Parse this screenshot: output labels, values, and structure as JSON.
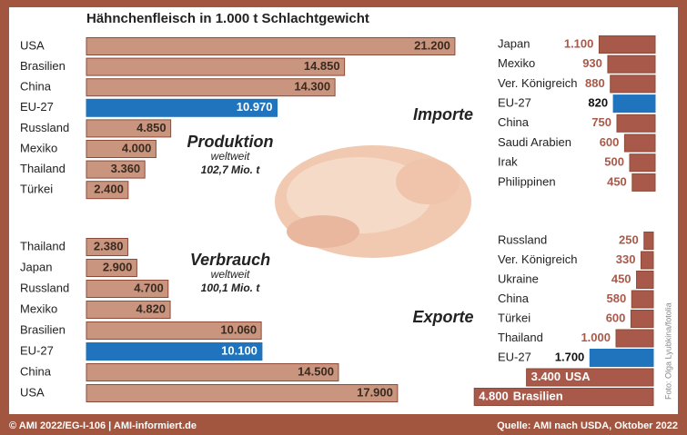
{
  "title": "Hähnchenfleisch in 1.000 t Schlachtgewicht",
  "footer_left": "© AMI 2022/EG-I-106 | AMI-informiert.de",
  "footer_right": "Quelle: AMI nach USDA, Oktober 2022",
  "photo_credit": "Foto: Olga Lyubkina/fotolia",
  "chart_data": [
    {
      "type": "bar",
      "orientation": "horizontal",
      "title": "Produktion",
      "subtitle": "weltweit",
      "annotation": "102,7 Mio. t",
      "categories": [
        "USA",
        "Brasilien",
        "China",
        "EU-27",
        "Russland",
        "Mexiko",
        "Thailand",
        "Türkei"
      ],
      "values": [
        21200,
        14850,
        14300,
        10970,
        4850,
        4000,
        3360,
        2400
      ],
      "value_labels": [
        "21.200",
        "14.850",
        "14.300",
        "10.970",
        "4.850",
        "4.000",
        "3.360",
        "2.400"
      ],
      "colors": [
        "#c9957e",
        "#c9957e",
        "#c9957e",
        "#1f74bd",
        "#c9957e",
        "#c9957e",
        "#c9957e",
        "#c9957e"
      ]
    },
    {
      "type": "bar",
      "orientation": "horizontal",
      "title": "Verbrauch",
      "subtitle": "weltweit",
      "annotation": "100,1 Mio. t",
      "categories": [
        "Thailand",
        "Japan",
        "Russland",
        "Mexiko",
        "Brasilien",
        "EU-27",
        "China",
        "USA"
      ],
      "values": [
        2380,
        2900,
        4700,
        4820,
        10060,
        10100,
        14500,
        17900
      ],
      "value_labels": [
        "2.380",
        "2.900",
        "4.700",
        "4.820",
        "10.060",
        "10.100",
        "14.500",
        "17.900"
      ],
      "colors": [
        "#c9957e",
        "#c9957e",
        "#c9957e",
        "#c9957e",
        "#c9957e",
        "#1f74bd",
        "#c9957e",
        "#c9957e"
      ]
    },
    {
      "type": "bar",
      "orientation": "horizontal",
      "title": "Importe",
      "categories": [
        "Japan",
        "Mexiko",
        "Ver. Königreich",
        "EU-27",
        "China",
        "Saudi Arabien",
        "Irak",
        "Philippinen"
      ],
      "values": [
        1100,
        930,
        880,
        820,
        750,
        600,
        500,
        450
      ],
      "value_labels": [
        "1.100",
        "930",
        "880",
        "820",
        "750",
        "600",
        "500",
        "450"
      ],
      "colors": [
        "#a9594a",
        "#a9594a",
        "#a9594a",
        "#1f74bd",
        "#a9594a",
        "#a9594a",
        "#a9594a",
        "#a9594a"
      ]
    },
    {
      "type": "bar",
      "orientation": "horizontal",
      "title": "Exporte",
      "categories": [
        "Russland",
        "Ver. Königreich",
        "Ukraine",
        "China",
        "Türkei",
        "Thailand",
        "EU-27",
        "USA",
        "Brasilien"
      ],
      "values": [
        250,
        330,
        450,
        580,
        600,
        1000,
        1700,
        3400,
        4800
      ],
      "value_labels": [
        "250",
        "330",
        "450",
        "580",
        "600",
        "1.000",
        "1.700",
        "3.400",
        "4.800"
      ],
      "colors": [
        "#a9594a",
        "#a9594a",
        "#a9594a",
        "#a9594a",
        "#a9594a",
        "#a9594a",
        "#1f74bd",
        "#a9594a",
        "#a9594a"
      ]
    }
  ]
}
